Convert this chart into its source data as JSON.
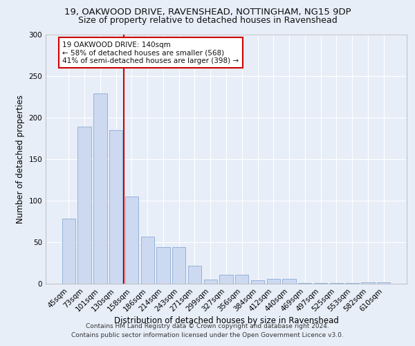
{
  "title": "19, OAKWOOD DRIVE, RAVENSHEAD, NOTTINGHAM, NG15 9DP",
  "subtitle": "Size of property relative to detached houses in Ravenshead",
  "xlabel": "Distribution of detached houses by size in Ravenshead",
  "ylabel": "Number of detached properties",
  "footer_line1": "Contains HM Land Registry data © Crown copyright and database right 2024.",
  "footer_line2": "Contains public sector information licensed under the Open Government Licence v3.0.",
  "categories": [
    "45sqm",
    "73sqm",
    "101sqm",
    "130sqm",
    "158sqm",
    "186sqm",
    "214sqm",
    "243sqm",
    "271sqm",
    "299sqm",
    "327sqm",
    "356sqm",
    "384sqm",
    "412sqm",
    "440sqm",
    "469sqm",
    "497sqm",
    "525sqm",
    "553sqm",
    "582sqm",
    "610sqm"
  ],
  "values": [
    78,
    189,
    229,
    185,
    105,
    57,
    44,
    44,
    22,
    5,
    11,
    11,
    4,
    6,
    6,
    1,
    1,
    1,
    1,
    2,
    2
  ],
  "bar_color": "#ccd9f0",
  "bar_edge_color": "#8aaad4",
  "reference_line_x": 3.5,
  "reference_line_label": "19 OAKWOOD DRIVE: 140sqm",
  "annotation_line1": "← 58% of detached houses are smaller (568)",
  "annotation_line2": "41% of semi-detached houses are larger (398) →",
  "annotation_box_color": "#ffffff",
  "annotation_box_edge_color": "#cc0000",
  "ref_line_color": "#cc0000",
  "ylim": [
    0,
    300
  ],
  "yticks": [
    0,
    50,
    100,
    150,
    200,
    250,
    300
  ],
  "background_color": "#e8eef8",
  "grid_color": "#ffffff",
  "title_fontsize": 9.5,
  "subtitle_fontsize": 9,
  "axis_label_fontsize": 8.5,
  "tick_fontsize": 7.5,
  "annotation_fontsize": 7.5,
  "footer_fontsize": 6.5
}
